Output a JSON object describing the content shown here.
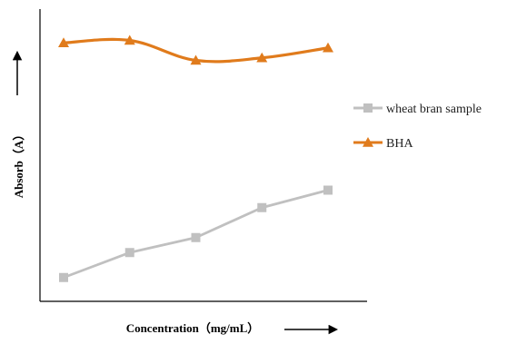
{
  "chart_data": {
    "type": "line",
    "xlabel": "Concentration（mg/mL）",
    "ylabel": "Absorb（A）",
    "x_count": 5,
    "ylim": [
      0,
      100
    ],
    "grid": false,
    "legend_position": "right",
    "series": [
      {
        "name": "wheat bran sample",
        "color": "#c0c0c0",
        "marker": "square",
        "smooth": false,
        "values": [
          7,
          17,
          23,
          35,
          42
        ]
      },
      {
        "name": "BHA",
        "color": "#e07b1c",
        "marker": "triangle",
        "smooth": true,
        "values": [
          101,
          102,
          94,
          95,
          99
        ]
      }
    ]
  }
}
